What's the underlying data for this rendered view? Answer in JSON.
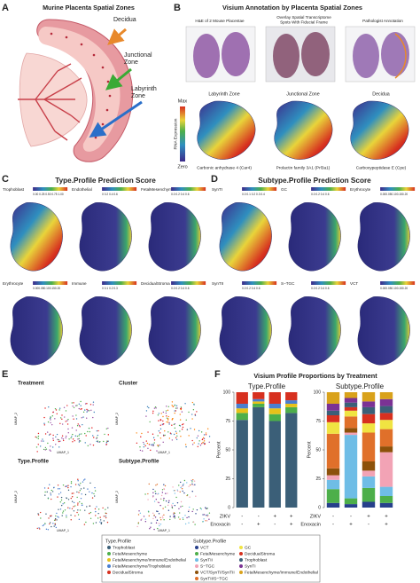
{
  "labels": {
    "a": "A",
    "b": "B",
    "c": "C",
    "d": "D",
    "e": "E",
    "f": "F"
  },
  "panel_a": {
    "title": "Murine Placenta Spatial Zones",
    "zones": [
      {
        "lines": [
          "Decidua"
        ]
      },
      {
        "lines": [
          "Junctional",
          "Zone"
        ]
      },
      {
        "lines": [
          "Labyrinth",
          "Zone"
        ]
      }
    ]
  },
  "panel_b": {
    "title": "Visium Annotation by Placenta Spatial Zones",
    "images": [
      {
        "lines": [
          "H&E of 2 Mouse Placentae"
        ]
      },
      {
        "lines": [
          "Overlay Spatial Transcriptome",
          "Spots With Fiducial Frame"
        ]
      },
      {
        "lines": [
          "Pathologist Annotation"
        ]
      }
    ],
    "colorbar": {
      "label": "RNA Expression",
      "max": "Max",
      "min": "Zero"
    },
    "zones": [
      {
        "title": "Labyrinth Zone",
        "gene": "Carbonic anhydrase 4 (Car4)"
      },
      {
        "title": "Junctional Zone",
        "gene": "Prolactin family 3A1 (Prl3a1)"
      },
      {
        "title": "Decidua",
        "gene": "Carboxypeptidase E (Cpe)"
      }
    ]
  },
  "panel_c": {
    "title": "Type.Profile Prediction Score",
    "maps": [
      {
        "name": "Trophoblast",
        "scale": "0.00 0.25 0.50 0.75 1.00"
      },
      {
        "name": "Endothelial",
        "scale": "0  0.2  0.4  0.6"
      },
      {
        "name": "FetalMesenchyme",
        "scale": "0.0 0.2 0.4 0.6"
      },
      {
        "name": "Erythrocyte",
        "scale": "0.000.050.100.150.20"
      },
      {
        "name": "Immune",
        "scale": "0  0.1  0.2  0.3"
      },
      {
        "name": "DecidualStroma",
        "scale": "0.0  0.2  0.4  0.6"
      }
    ]
  },
  "panel_d": {
    "title": "Subtype.Profile Prediction Score",
    "maps": [
      {
        "name": "SynTI",
        "scale": "0.0 0.1 0.2 0.3 0.4"
      },
      {
        "name": "GC",
        "scale": "0.0 0.2 0.4 0.6"
      },
      {
        "name": "Erythrocyte",
        "scale": "0.000.050.100.150.20"
      },
      {
        "name": "SynTII",
        "scale": "0.0 0.2 0.4 0.6"
      },
      {
        "name": "S−TGC",
        "scale": "0.0 0.2 0.4 0.6"
      },
      {
        "name": "VCT",
        "scale": "0.000.050.100.150.20"
      }
    ]
  },
  "panel_e": {
    "titles": [
      "Treatment",
      "Cluster",
      "Type.Profile",
      "Subtype.Profile"
    ],
    "x_label": "UMAP_1",
    "y_label": "UMAP_2"
  },
  "panel_f": {
    "title": "Visium Profile Proportions by Treatment",
    "treatments": [
      {
        "name": "ZIKV",
        "values": [
          "-",
          "-",
          "+",
          "+"
        ]
      },
      {
        "name": "Enoxacin",
        "values": [
          "-",
          "+",
          "-",
          "+"
        ]
      }
    ]
  },
  "chart_data": [
    {
      "type": "stacked_bar",
      "title": "Type.Profile",
      "y_label": "Percent",
      "ylim": [
        0,
        100
      ],
      "yticks": [
        0,
        25,
        50,
        75,
        100
      ],
      "categories": [
        null,
        null,
        null,
        null
      ],
      "series": [
        {
          "name": "Trophoblast",
          "color": "#3b5f78",
          "values": [
            76,
            87,
            75,
            82
          ]
        },
        {
          "name": "FetalMesenchyme",
          "color": "#4daf4a",
          "values": [
            6,
            3,
            6,
            5
          ]
        },
        {
          "name": "FetalMesenchyme/Immune/Endothelial",
          "color": "#e8c21a",
          "values": [
            4,
            2,
            5,
            3
          ]
        },
        {
          "name": "FetalMesenchyme/Trophoblast",
          "color": "#4a7fd0",
          "values": [
            4,
            2,
            4,
            3
          ]
        },
        {
          "name": "DecidualStroma",
          "color": "#d7301f",
          "values": [
            10,
            6,
            10,
            7
          ]
        }
      ]
    },
    {
      "type": "stacked_bar",
      "title": "Subtype.Profile",
      "y_label": "Percent",
      "ylim": [
        0,
        100
      ],
      "yticks": [
        0,
        25,
        50,
        75,
        100
      ],
      "categories": [
        null,
        null,
        null,
        null
      ],
      "series": [
        {
          "name": "VCT",
          "color": "#27408b",
          "values": [
            4,
            3,
            5,
            4
          ]
        },
        {
          "name": "FetalMesenchyme",
          "color": "#4daf4a",
          "values": [
            12,
            5,
            12,
            6
          ]
        },
        {
          "name": "SynTII",
          "color": "#6fbde6",
          "values": [
            8,
            55,
            10,
            8
          ]
        },
        {
          "name": "S−TGC",
          "color": "#f2a3b5",
          "values": [
            4,
            2,
            5,
            30
          ]
        },
        {
          "name": "VCT/SynTI/SynTII",
          "color": "#8c510a",
          "values": [
            6,
            4,
            8,
            5
          ]
        },
        {
          "name": "SynTII/S−TGC",
          "color": "#e0702a",
          "values": [
            30,
            10,
            25,
            15
          ]
        },
        {
          "name": "GC",
          "color": "#f0e442",
          "values": [
            10,
            5,
            8,
            8
          ]
        },
        {
          "name": "DecidualStroma",
          "color": "#d7301f",
          "values": [
            6,
            3,
            8,
            6
          ]
        },
        {
          "name": "Trophoblast",
          "color": "#3b5f78",
          "values": [
            4,
            4,
            6,
            6
          ]
        },
        {
          "name": "SynTI",
          "color": "#7b3294",
          "values": [
            6,
            4,
            5,
            6
          ]
        },
        {
          "name": "FetalMesenchyme/Immune/Endothelial",
          "color": "#d9a21b",
          "values": [
            10,
            5,
            8,
            6
          ]
        }
      ]
    }
  ]
}
